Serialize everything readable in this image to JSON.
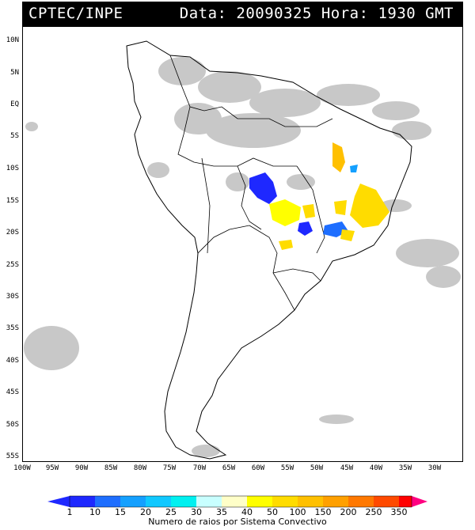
{
  "header": {
    "left": "CPTEC/INPE",
    "right": "Data: 20090325 Hora: 1930 GMT"
  },
  "axes": {
    "lat_labels": [
      "10N",
      "5N",
      "EQ",
      "5S",
      "10S",
      "15S",
      "20S",
      "25S",
      "30S",
      "35S",
      "40S",
      "45S",
      "50S",
      "55S"
    ],
    "lon_labels": [
      "100W",
      "95W",
      "90W",
      "85W",
      "80W",
      "75W",
      "70W",
      "65W",
      "60W",
      "55W",
      "50W",
      "45W",
      "40W",
      "35W",
      "30W"
    ]
  },
  "legend": {
    "ticks": [
      "1",
      "10",
      "15",
      "20",
      "25",
      "30",
      "35",
      "40",
      "50",
      "100",
      "150",
      "200",
      "250",
      "350"
    ],
    "colors": [
      "#1e28ff",
      "#1e6eff",
      "#14a0ff",
      "#10c8ff",
      "#00f0f0",
      "#c8ffff",
      "#ffffc8",
      "#ffff00",
      "#ffdc00",
      "#ffc000",
      "#ffa000",
      "#ff7800",
      "#ff4a00",
      "#ff0000",
      "#ff0080"
    ],
    "caption": "Numero de raios por Sistema Convectivo"
  }
}
